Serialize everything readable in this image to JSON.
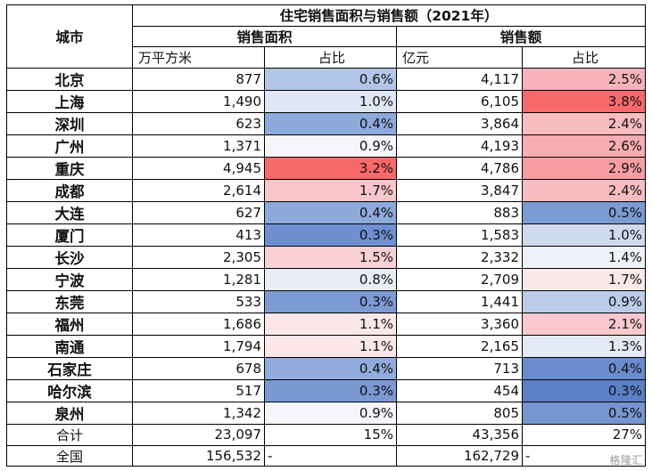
{
  "table": {
    "title": "住宅销售面积与销售额（2021年）",
    "city_header": "城市",
    "area_header": "销售面积",
    "amount_header": "销售额",
    "area_unit": "万平方米",
    "area_share_label": "占比",
    "amount_unit": "亿元",
    "amount_share_label": "占比",
    "rows": [
      {
        "city": "北京",
        "area": "877",
        "area_pct": "0.6%",
        "amount": "4,117",
        "amount_pct": "2.5%",
        "area_color": "#b4c6e7",
        "amount_color": "#f8b3b8"
      },
      {
        "city": "上海",
        "area": "1,490",
        "area_pct": "1.0%",
        "amount": "6,105",
        "amount_pct": "3.8%",
        "area_color": "#dfe6f4",
        "amount_color": "#f8696b"
      },
      {
        "city": "深圳",
        "area": "623",
        "area_pct": "0.4%",
        "amount": "3,864",
        "amount_pct": "2.4%",
        "area_color": "#8eaadb",
        "amount_color": "#f8bdc1"
      },
      {
        "city": "广州",
        "area": "1,371",
        "area_pct": "0.9%",
        "amount": "4,193",
        "amount_pct": "2.6%",
        "area_color": "#f4f6fb",
        "amount_color": "#f8adb2"
      },
      {
        "city": "重庆",
        "area": "4,945",
        "area_pct": "3.2%",
        "amount": "4,786",
        "amount_pct": "2.9%",
        "area_color": "#f8696b",
        "amount_color": "#f89ea2"
      },
      {
        "city": "成都",
        "area": "2,614",
        "area_pct": "1.7%",
        "amount": "3,847",
        "amount_pct": "2.4%",
        "area_color": "#f9c6ca",
        "amount_color": "#f8bdc1"
      },
      {
        "city": "大连",
        "area": "627",
        "area_pct": "0.4%",
        "amount": "883",
        "amount_pct": "0.5%",
        "area_color": "#8eaadb",
        "amount_color": "#7b9bd4"
      },
      {
        "city": "厦门",
        "area": "413",
        "area_pct": "0.3%",
        "amount": "1,583",
        "amount_pct": "1.0%",
        "area_color": "#6f8fd0",
        "amount_color": "#cfdaef"
      },
      {
        "city": "长沙",
        "area": "2,305",
        "area_pct": "1.5%",
        "amount": "2,332",
        "amount_pct": "1.4%",
        "area_color": "#f9d0d4",
        "amount_color": "#eef2f9"
      },
      {
        "city": "宁波",
        "area": "1,281",
        "area_pct": "0.8%",
        "amount": "2,709",
        "amount_pct": "1.7%",
        "area_color": "#e8edf7",
        "amount_color": "#fbe8ea"
      },
      {
        "city": "东莞",
        "area": "533",
        "area_pct": "0.3%",
        "amount": "1,441",
        "amount_pct": "0.9%",
        "area_color": "#7c9bd4",
        "amount_color": "#bccbe9"
      },
      {
        "city": "福州",
        "area": "1,686",
        "area_pct": "1.1%",
        "amount": "3,360",
        "amount_pct": "2.1%",
        "area_color": "#fbe6e8",
        "amount_color": "#f9c9cd"
      },
      {
        "city": "南通",
        "area": "1,794",
        "area_pct": "1.1%",
        "amount": "2,165",
        "amount_pct": "1.3%",
        "area_color": "#fbe6e8",
        "amount_color": "#e3e9f5"
      },
      {
        "city": "石家庄",
        "area": "678",
        "area_pct": "0.4%",
        "amount": "713",
        "amount_pct": "0.4%",
        "area_color": "#91acdc",
        "amount_color": "#6a8bcd"
      },
      {
        "city": "哈尔滨",
        "area": "517",
        "area_pct": "0.3%",
        "amount": "454",
        "amount_pct": "0.3%",
        "area_color": "#7a99d3",
        "amount_color": "#5b7fc8"
      },
      {
        "city": "泉州",
        "area": "1,342",
        "area_pct": "0.9%",
        "amount": "805",
        "amount_pct": "0.5%",
        "area_color": "#f4f6fb",
        "amount_color": "#7696d2"
      }
    ],
    "total": {
      "label": "合计",
      "area": "23,097",
      "area_pct": "15%",
      "amount": "43,356",
      "amount_pct": "27%"
    },
    "national": {
      "label": "全国",
      "area": "156,532",
      "area_pct": "-",
      "amount": "162,729",
      "amount_pct": "-"
    }
  },
  "watermark": "格隆汇"
}
